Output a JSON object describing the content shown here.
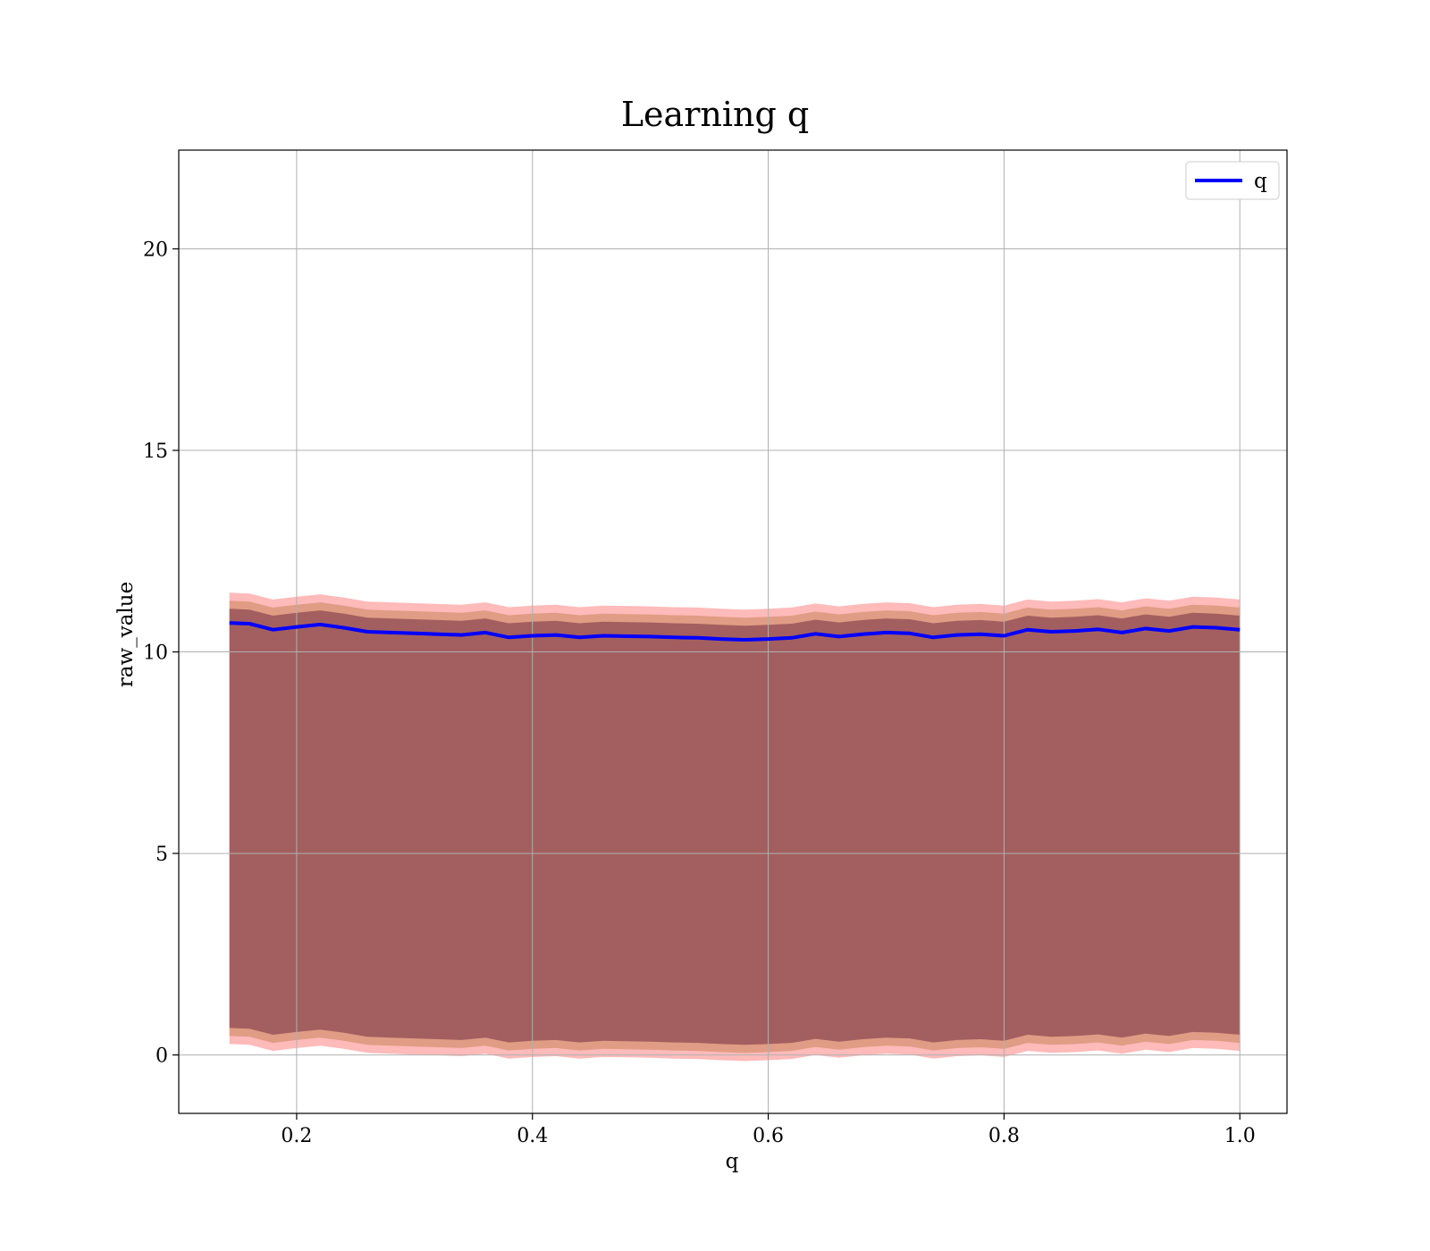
{
  "chart_data": {
    "type": "line",
    "title": "Learning q",
    "xlabel": "q",
    "ylabel": "raw_value",
    "xlim": [
      0.1,
      1.04
    ],
    "ylim": [
      -1.45,
      22.45
    ],
    "x_ticks": [
      0.2,
      0.4,
      0.6,
      0.8,
      1.0
    ],
    "x_tick_labels": [
      "0.2",
      "0.4",
      "0.6",
      "0.8",
      "1.0"
    ],
    "y_ticks": [
      0,
      5,
      10,
      15,
      20
    ],
    "y_tick_labels": [
      "0",
      "5",
      "10",
      "15",
      "20"
    ],
    "grid": true,
    "legend": {
      "position": "top-right"
    },
    "series": [
      {
        "name": "q",
        "color": "#0000ff",
        "x": [
          0.143,
          0.16,
          0.18,
          0.2,
          0.22,
          0.24,
          0.26,
          0.28,
          0.3,
          0.32,
          0.34,
          0.36,
          0.38,
          0.4,
          0.42,
          0.44,
          0.46,
          0.48,
          0.5,
          0.52,
          0.54,
          0.56,
          0.58,
          0.6,
          0.62,
          0.64,
          0.66,
          0.68,
          0.7,
          0.72,
          0.74,
          0.76,
          0.78,
          0.8,
          0.82,
          0.84,
          0.86,
          0.88,
          0.9,
          0.92,
          0.94,
          0.96,
          0.98,
          1.0
        ],
        "values": [
          10.72,
          10.7,
          10.55,
          10.62,
          10.68,
          10.6,
          10.5,
          10.48,
          10.46,
          10.44,
          10.42,
          10.48,
          10.36,
          10.4,
          10.42,
          10.36,
          10.4,
          10.39,
          10.38,
          10.36,
          10.35,
          10.32,
          10.3,
          10.32,
          10.35,
          10.45,
          10.38,
          10.44,
          10.48,
          10.46,
          10.36,
          10.42,
          10.44,
          10.4,
          10.55,
          10.5,
          10.52,
          10.56,
          10.48,
          10.58,
          10.52,
          10.62,
          10.6,
          10.55
        ]
      }
    ],
    "bands": [
      {
        "color": "#ff6666",
        "opacity": 0.45,
        "upper_offset": 0.75,
        "lower_offset": -10.45
      },
      {
        "color": "#c8845a",
        "opacity": 0.55,
        "upper_offset": 0.55,
        "lower_offset": -10.25
      },
      {
        "color": "#7a3746",
        "opacity": 0.6,
        "upper_offset": 0.35,
        "lower_offset": -10.05
      }
    ]
  }
}
